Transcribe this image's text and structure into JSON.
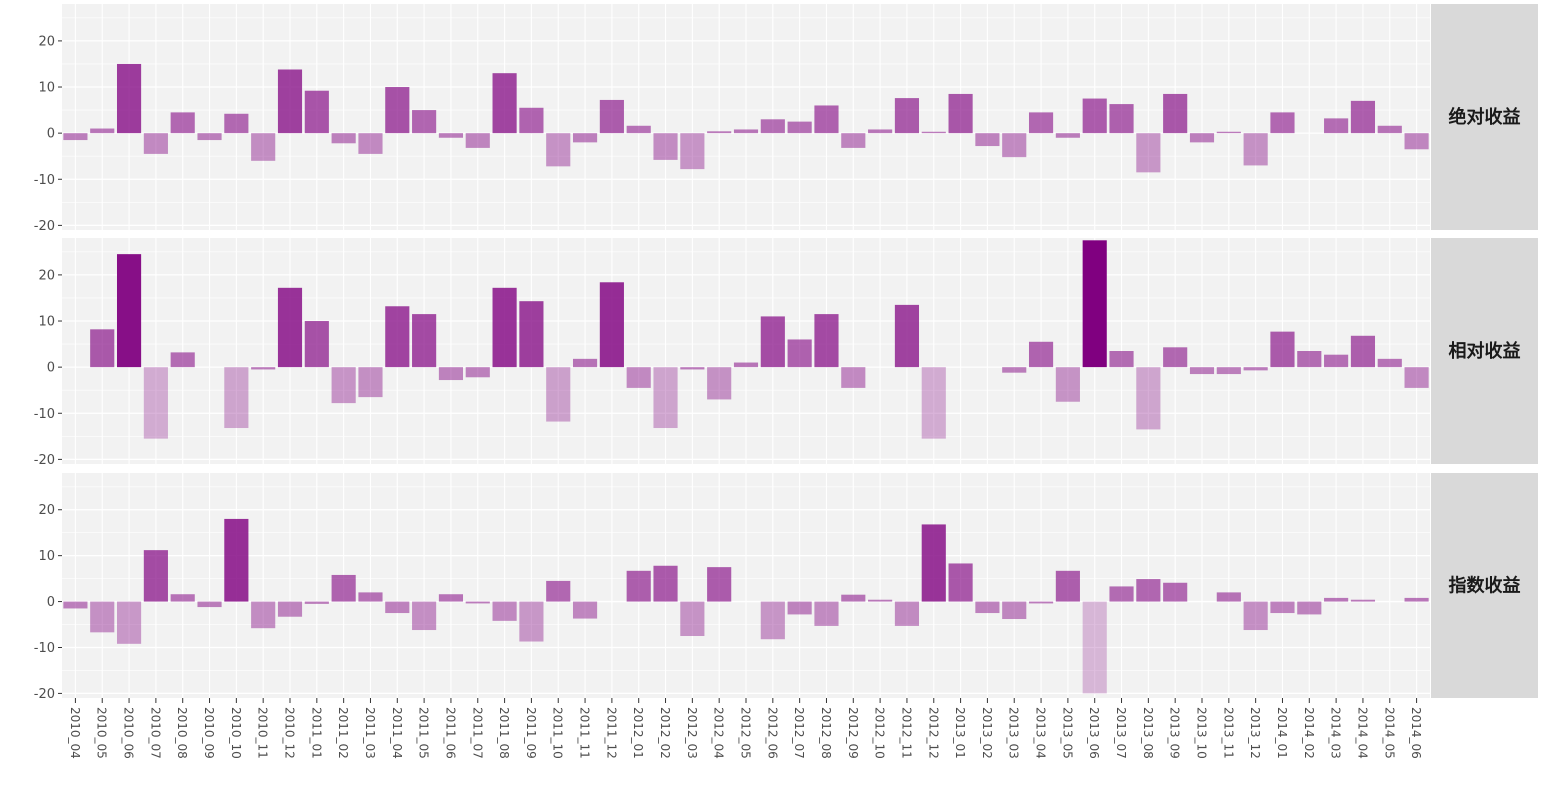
{
  "chart_data": {
    "type": "bar",
    "categories": [
      "2010_04",
      "2010_05",
      "2010_06",
      "2010_07",
      "2010_08",
      "2010_09",
      "2010_10",
      "2010_11",
      "2010_12",
      "2011_01",
      "2011_02",
      "2011_03",
      "2011_04",
      "2011_05",
      "2011_06",
      "2011_07",
      "2011_08",
      "2011_09",
      "2011_10",
      "2011_11",
      "2011_12",
      "2012_01",
      "2012_02",
      "2012_03",
      "2012_04",
      "2012_05",
      "2012_06",
      "2012_07",
      "2012_08",
      "2012_09",
      "2012_10",
      "2012_11",
      "2012_12",
      "2013_01",
      "2013_02",
      "2013_03",
      "2013_04",
      "2013_05",
      "2013_06",
      "2013_07",
      "2013_08",
      "2013_09",
      "2013_10",
      "2013_11",
      "2013_12",
      "2014_01",
      "2014_02",
      "2014_03",
      "2014_04",
      "2014_05",
      "2014_06"
    ],
    "ylim": [
      -21,
      28
    ],
    "yticks": [
      -20,
      -10,
      0,
      10,
      20
    ],
    "facet_layout": "stacked rows, facet strip on right",
    "grid": true,
    "colors": {
      "positive": "#800080",
      "negative": "#800080",
      "panel_bg": "#f2f2f2",
      "strip_bg": "#d9d9d9",
      "grid": "#ffffff"
    },
    "series": [
      {
        "name": "绝对收益",
        "values": [
          -1.5,
          1,
          15,
          -4.5,
          4.5,
          -1.5,
          4.2,
          -6,
          13.8,
          9.2,
          -2.2,
          -4.5,
          10,
          5,
          -1,
          -3.2,
          13,
          5.5,
          -7.2,
          -2,
          7.2,
          1.6,
          -5.8,
          -7.8,
          0.4,
          0.8,
          3,
          2.5,
          6,
          -3.2,
          0.8,
          7.6,
          0.3,
          8.5,
          -2.8,
          -5.2,
          4.5,
          -1,
          7.5,
          6.3,
          -8.5,
          8.5,
          -2,
          0.3,
          -7,
          4.5,
          0,
          3.2,
          7,
          1.6,
          -3.5
        ]
      },
      {
        "name": "相对收益",
        "values": [
          0,
          8.2,
          24.5,
          -15.5,
          3.2,
          0,
          -13.2,
          -0.5,
          17.2,
          10,
          -7.8,
          -6.5,
          13.2,
          11.5,
          -2.8,
          -2.2,
          17.2,
          14.3,
          -11.8,
          1.8,
          18.4,
          -4.5,
          -13.2,
          -0.5,
          -7,
          1,
          11,
          6,
          11.5,
          -4.5,
          0,
          13.5,
          -15.5,
          0,
          0,
          -1.2,
          5.5,
          -7.5,
          27.5,
          3.5,
          -13.5,
          4.3,
          -1.5,
          -1.5,
          -0.7,
          7.7,
          3.5,
          2.7,
          6.8,
          1.8,
          -4.5
        ]
      },
      {
        "name": "指数收益",
        "values": [
          -1.5,
          -6.7,
          -9.2,
          11.2,
          1.6,
          -1.2,
          18,
          -5.8,
          -3.3,
          -0.5,
          5.8,
          2,
          -2.5,
          -6.2,
          1.6,
          -0.4,
          -4.2,
          -8.7,
          4.5,
          -3.7,
          0,
          6.7,
          7.8,
          -7.5,
          7.5,
          0,
          -8.2,
          -2.8,
          -5.3,
          1.5,
          0.4,
          -5.3,
          16.8,
          8.3,
          -2.5,
          -3.8,
          -0.4,
          6.7,
          -20,
          3.3,
          4.9,
          4.1,
          0,
          2,
          -6.2,
          -2.5,
          -2.8,
          0.8,
          0.4,
          0,
          0.8
        ]
      }
    ]
  }
}
